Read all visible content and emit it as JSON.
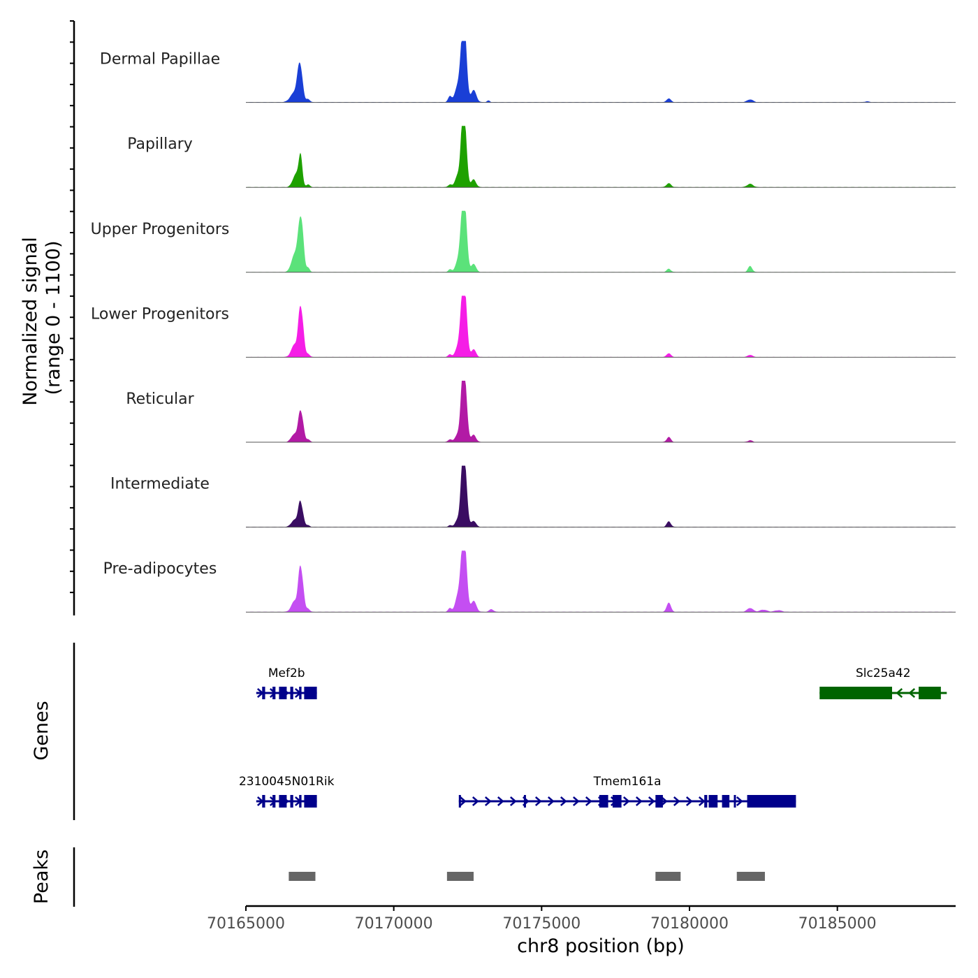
{
  "chart_data": {
    "type": "genome-coverage-tracks",
    "chromosome": "chr8",
    "xlim": [
      70165000,
      70189000
    ],
    "xlabel": "chr8 position (bp)",
    "xticks": [
      70165000,
      70170000,
      70175000,
      70180000,
      70185000
    ],
    "ylabel": "Normalized signal",
    "ylabel_range": "(range 0 - 1100)",
    "ylim": [
      0,
      1100
    ],
    "tracks": [
      {
        "name": "Dermal Papillae",
        "color": "#1a3fd6",
        "peaks": [
          [
            70166650,
            180,
            140
          ],
          [
            70166800,
            540,
            70
          ],
          [
            70166900,
            260,
            60
          ],
          [
            70167100,
            60,
            60
          ],
          [
            70171900,
            110,
            60
          ],
          [
            70172150,
            260,
            90
          ],
          [
            70172330,
            1100,
            80
          ],
          [
            70172420,
            700,
            70
          ],
          [
            70172700,
            220,
            90
          ],
          [
            70173200,
            30,
            50
          ],
          [
            70179300,
            70,
            70
          ],
          [
            70182050,
            50,
            100
          ],
          [
            70186000,
            15,
            80
          ]
        ]
      },
      {
        "name": "Papillary",
        "color": "#1ea100",
        "peaks": [
          [
            70166700,
            240,
            110
          ],
          [
            70166850,
            520,
            60
          ],
          [
            70167100,
            50,
            60
          ],
          [
            70171900,
            50,
            60
          ],
          [
            70172150,
            200,
            80
          ],
          [
            70172330,
            1100,
            70
          ],
          [
            70172420,
            700,
            70
          ],
          [
            70172700,
            140,
            80
          ],
          [
            70179300,
            70,
            80
          ],
          [
            70182050,
            60,
            100
          ]
        ]
      },
      {
        "name": "Upper Progenitors",
        "color": "#5be27a",
        "peaks": [
          [
            70166650,
            320,
            110
          ],
          [
            70166820,
            750,
            70
          ],
          [
            70166920,
            500,
            60
          ],
          [
            70167100,
            80,
            60
          ],
          [
            70171900,
            50,
            60
          ],
          [
            70172150,
            160,
            80
          ],
          [
            70172330,
            1100,
            80
          ],
          [
            70172430,
            650,
            70
          ],
          [
            70172700,
            150,
            80
          ],
          [
            70179300,
            60,
            70
          ],
          [
            70182050,
            110,
            70
          ]
        ]
      },
      {
        "name": "Lower Progenitors",
        "color": "#f51ee6",
        "peaks": [
          [
            70166650,
            230,
            110
          ],
          [
            70166820,
            700,
            60
          ],
          [
            70166920,
            500,
            60
          ],
          [
            70167100,
            60,
            60
          ],
          [
            70171900,
            50,
            60
          ],
          [
            70172150,
            150,
            80
          ],
          [
            70172330,
            1100,
            80
          ],
          [
            70172430,
            650,
            70
          ],
          [
            70172700,
            140,
            80
          ],
          [
            70179300,
            70,
            70
          ],
          [
            70182050,
            40,
            80
          ]
        ]
      },
      {
        "name": "Reticular",
        "color": "#b21aa5",
        "peaks": [
          [
            70166650,
            150,
            110
          ],
          [
            70166820,
            440,
            60
          ],
          [
            70166920,
            300,
            60
          ],
          [
            70167100,
            50,
            60
          ],
          [
            70171900,
            50,
            60
          ],
          [
            70172150,
            130,
            80
          ],
          [
            70172330,
            1100,
            70
          ],
          [
            70172430,
            700,
            70
          ],
          [
            70172700,
            130,
            80
          ],
          [
            70179300,
            90,
            70
          ],
          [
            70182050,
            30,
            80
          ]
        ]
      },
      {
        "name": "Intermediate",
        "color": "#3a0d62",
        "peaks": [
          [
            70166650,
            130,
            110
          ],
          [
            70166820,
            380,
            60
          ],
          [
            70166920,
            200,
            60
          ],
          [
            70167100,
            30,
            60
          ],
          [
            70171900,
            30,
            60
          ],
          [
            70172150,
            120,
            80
          ],
          [
            70172330,
            1100,
            70
          ],
          [
            70172430,
            700,
            70
          ],
          [
            70172700,
            110,
            80
          ],
          [
            70179300,
            100,
            70
          ]
        ]
      },
      {
        "name": "Pre-adipocytes",
        "color": "#c44ef2",
        "peaks": [
          [
            70166650,
            200,
            110
          ],
          [
            70166820,
            650,
            60
          ],
          [
            70166920,
            420,
            60
          ],
          [
            70167100,
            60,
            60
          ],
          [
            70171900,
            70,
            60
          ],
          [
            70172150,
            250,
            80
          ],
          [
            70172330,
            1100,
            80
          ],
          [
            70172430,
            650,
            70
          ],
          [
            70172700,
            200,
            90
          ],
          [
            70173300,
            50,
            70
          ],
          [
            70179300,
            170,
            70
          ],
          [
            70182050,
            70,
            100
          ],
          [
            70182500,
            40,
            120
          ],
          [
            70183000,
            30,
            120
          ]
        ]
      }
    ],
    "genes_label": "Genes",
    "genes": [
      {
        "name": "Mef2b",
        "strand": "+",
        "color": "#00008b",
        "row": 0,
        "start": 70165350,
        "end": 70167400,
        "exons": [
          [
            70165550,
            70165650
          ],
          [
            70165900,
            70166000
          ],
          [
            70166120,
            70166380
          ],
          [
            70166500,
            70166600
          ],
          [
            70166800,
            70166880
          ],
          [
            70166970,
            70167400
          ]
        ]
      },
      {
        "name": "Slc25a42",
        "strand": "-",
        "color": "#006400",
        "row": 0,
        "start": 70184400,
        "end": 70188700,
        "exons": [
          [
            70184400,
            70186850
          ],
          [
            70187750,
            70188500
          ]
        ]
      },
      {
        "name": "2310045N01Rik",
        "strand": "+",
        "color": "#00008b",
        "row": 1,
        "start": 70165350,
        "end": 70167400,
        "exons": [
          [
            70165550,
            70165650
          ],
          [
            70165900,
            70166000
          ],
          [
            70166120,
            70166380
          ],
          [
            70166500,
            70166600
          ],
          [
            70166800,
            70166880
          ],
          [
            70166970,
            70167400
          ]
        ]
      },
      {
        "name": "Tmem161a",
        "strand": "+",
        "color": "#00008b",
        "row": 1,
        "start": 70172200,
        "end": 70183600,
        "exons": [
          [
            70172200,
            70172250
          ],
          [
            70174400,
            70174450
          ],
          [
            70176950,
            70177250
          ],
          [
            70177400,
            70177700
          ],
          [
            70178850,
            70179100
          ],
          [
            70180500,
            70180600
          ],
          [
            70180650,
            70180950
          ],
          [
            70181100,
            70181350
          ],
          [
            70181500,
            70181550
          ],
          [
            70181950,
            70183600
          ]
        ]
      }
    ],
    "peaks_label": "Peaks",
    "peak_regions": [
      [
        70166450,
        70167350
      ],
      [
        70171800,
        70172700
      ],
      [
        70178850,
        70179700
      ],
      [
        70181600,
        70182550
      ]
    ]
  }
}
